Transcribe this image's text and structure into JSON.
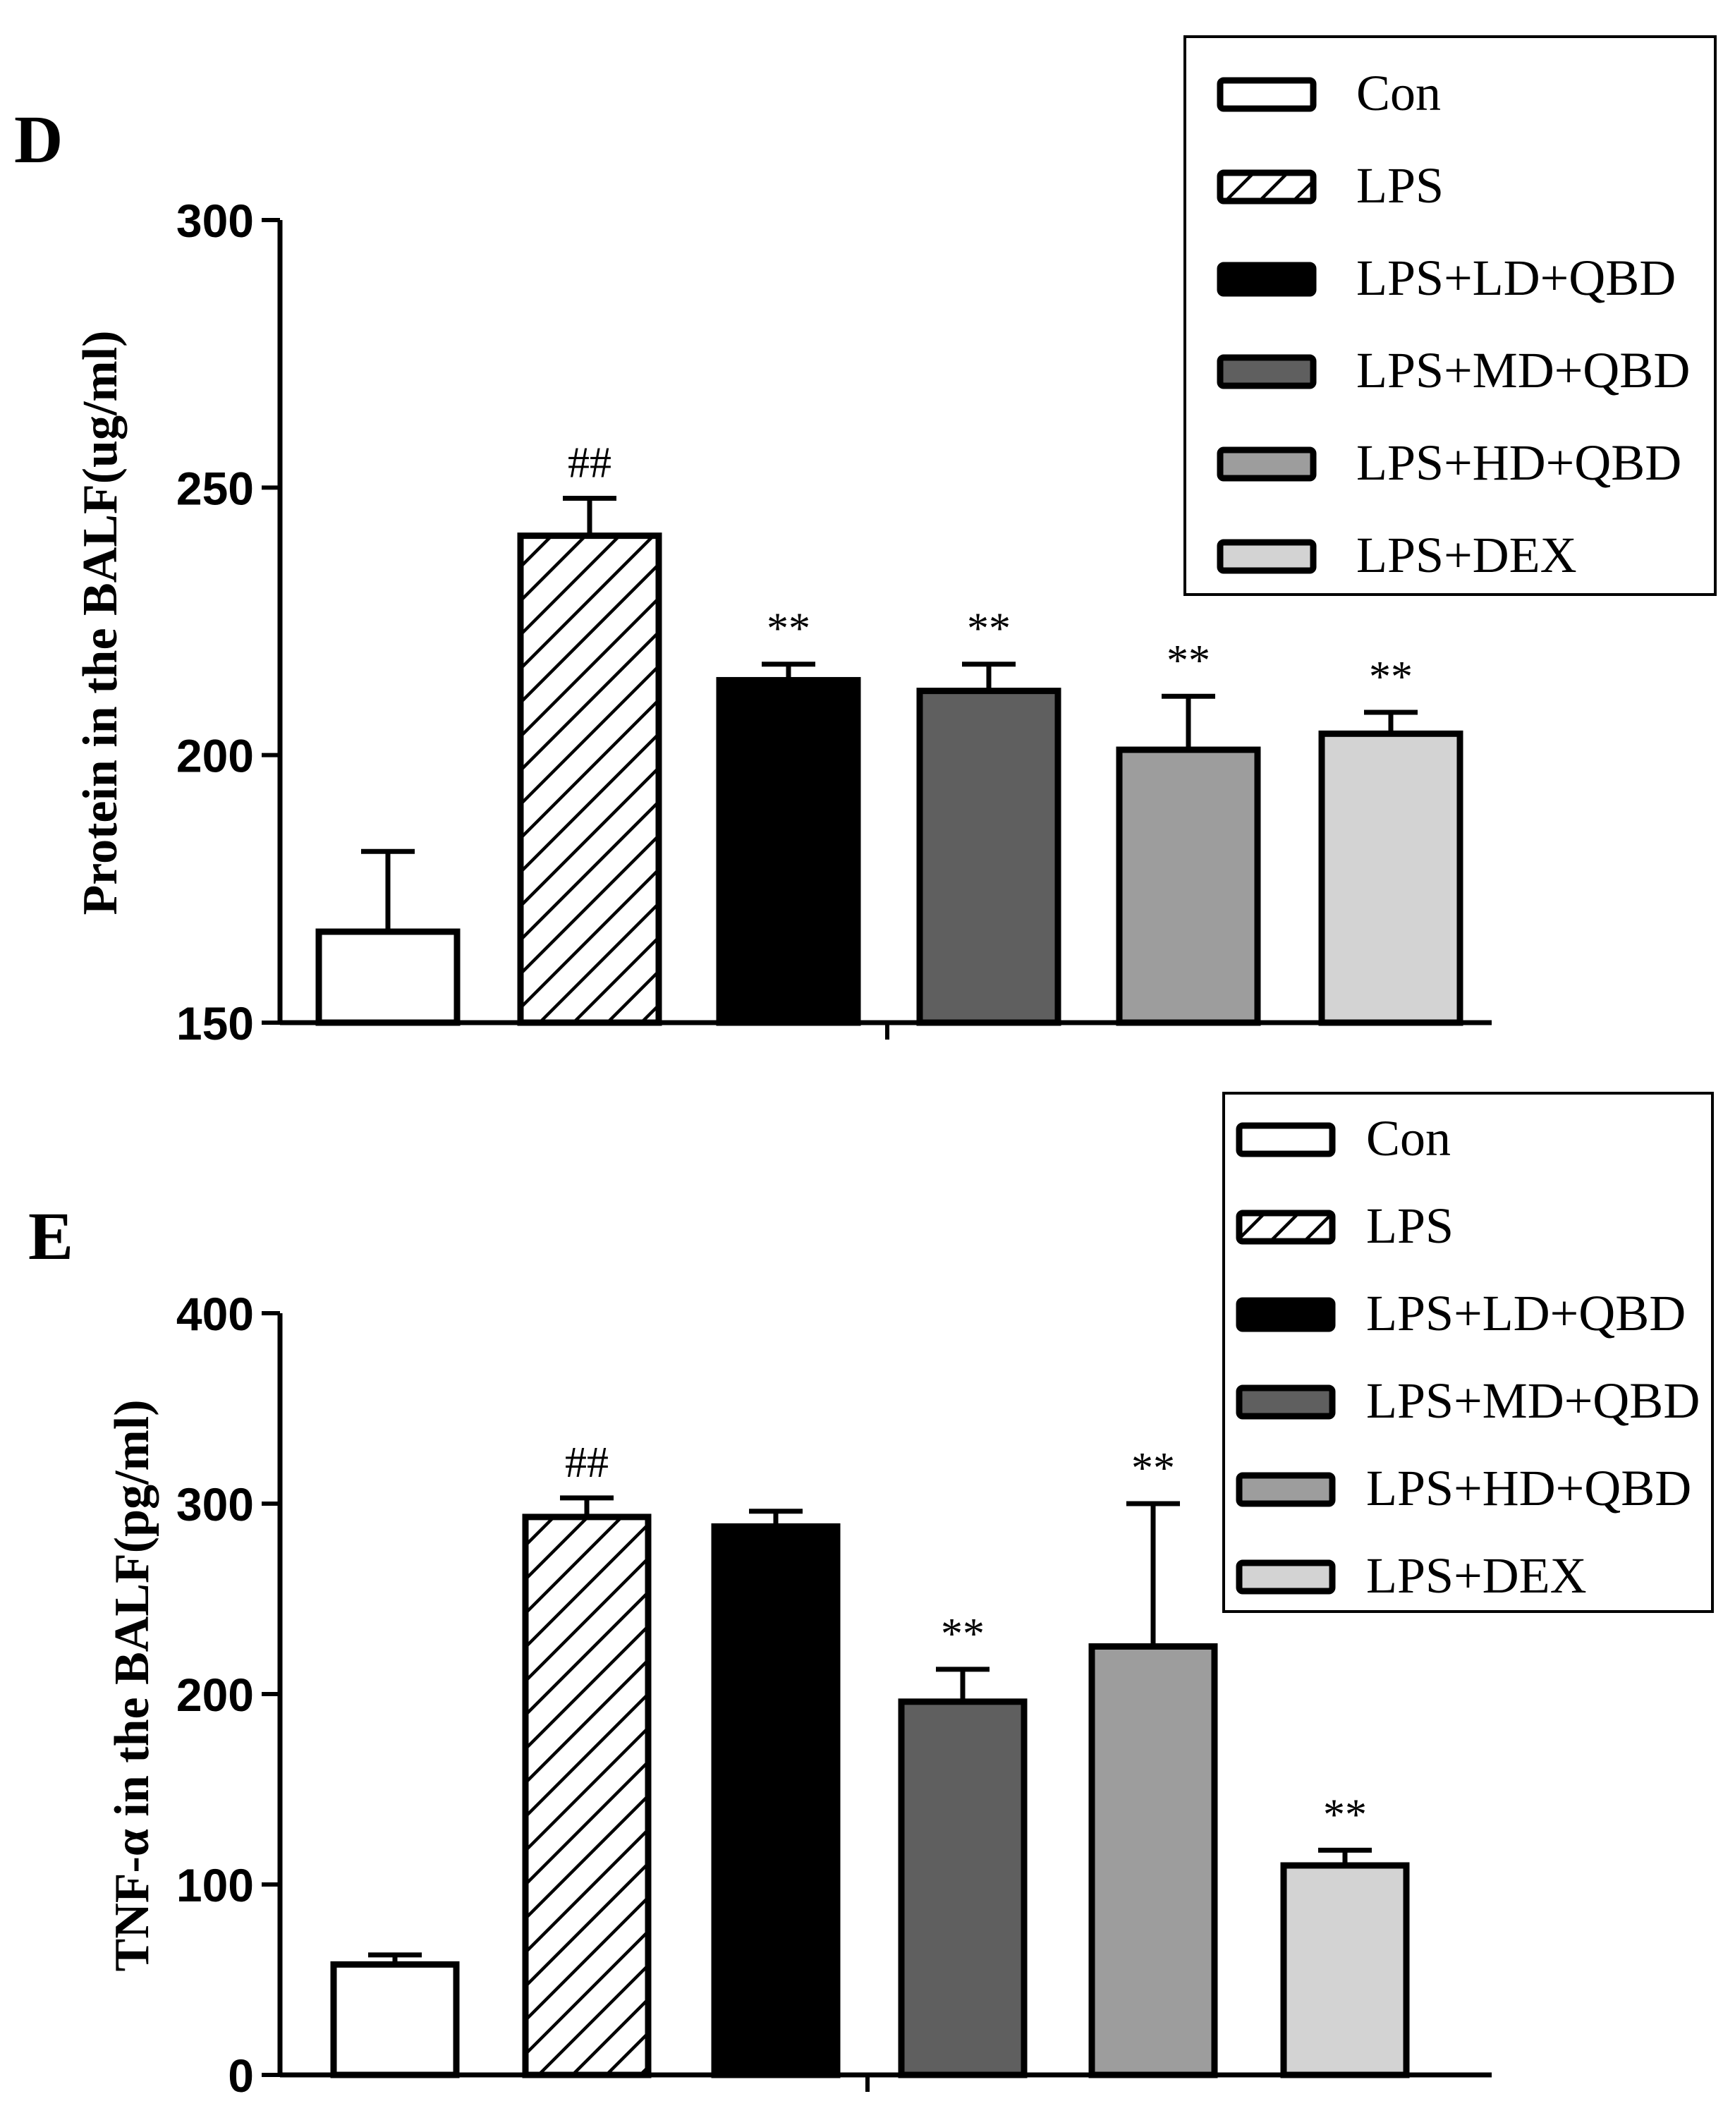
{
  "chart_data": [
    {
      "type": "bar",
      "panel_label": "D",
      "title": "",
      "xlabel": "",
      "ylabel": "Protein in the BALF(ug/ml)",
      "ylim": [
        150,
        300
      ],
      "yticks": [
        150,
        200,
        250,
        300
      ],
      "tick_labels": [
        "150",
        "200",
        "250",
        "300"
      ],
      "grid": false,
      "legend_position": "top-right",
      "categories": [
        "Con",
        "LPS",
        "LPS+LD+QBD",
        "LPS+MD+QBD",
        "LPS+HD+QBD",
        "LPS+DEX"
      ],
      "values": [
        167,
        241,
        214,
        212,
        201,
        204
      ],
      "errors": [
        15,
        7,
        3,
        5,
        10,
        4
      ],
      "annotations": [
        "",
        "##",
        "**",
        "**",
        "**",
        "**"
      ]
    },
    {
      "type": "bar",
      "panel_label": "E",
      "title": "",
      "xlabel": "",
      "ylabel": "TNF-α in the BALF(pg/ml)",
      "ylim": [
        0,
        400
      ],
      "yticks": [
        0,
        100,
        200,
        300,
        400
      ],
      "tick_labels": [
        "0",
        "100",
        "200",
        "300",
        "400"
      ],
      "grid": false,
      "legend_position": "top-right",
      "categories": [
        "Con",
        "LPS",
        "LPS+LD+QBD",
        "LPS+MD+QBD",
        "LPS+HD+QBD",
        "LPS+DEX"
      ],
      "values": [
        58,
        293,
        288,
        196,
        225,
        110
      ],
      "errors": [
        5,
        10,
        8,
        17,
        75,
        8
      ],
      "annotations": [
        "",
        "##",
        "",
        "**",
        "**",
        "**"
      ]
    }
  ],
  "series_styles": [
    {
      "name": "Con",
      "fill": "#ffffff",
      "pattern": "none"
    },
    {
      "name": "LPS",
      "fill": "#ffffff",
      "pattern": "diagonal-hatch"
    },
    {
      "name": "LPS+LD+QBD",
      "fill": "#000000",
      "pattern": "none"
    },
    {
      "name": "LPS+MD+QBD",
      "fill": "#5f5f5f",
      "pattern": "none"
    },
    {
      "name": "LPS+HD+QBD",
      "fill": "#9d9d9d",
      "pattern": "none"
    },
    {
      "name": "LPS+DEX",
      "fill": "#d3d3d3",
      "pattern": "none"
    }
  ]
}
